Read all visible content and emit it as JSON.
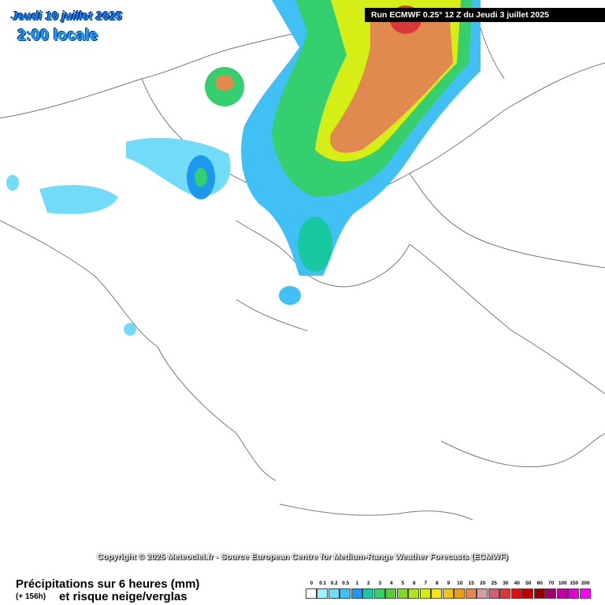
{
  "header": {
    "date": "Jeudi 10 juillet 2025",
    "time": "2:00 locale",
    "run": "Run ECMWF 0.25° 12 Z du Jeudi 3 juillet 2025"
  },
  "copyright": "Copyright © 2025 Meteociel.fr - Source European Centre for Medium-Range Weather Forecasts (ECMWF)",
  "footer": {
    "title": "Précipitations sur 6 heures (mm)",
    "lead": "(+ 156h)",
    "subtitle": "et risque neige/verglas"
  },
  "legend": {
    "labels": [
      "0",
      "0.1",
      "0.2",
      "0.5",
      "1",
      "2",
      "3",
      "4",
      "5",
      "6",
      "7",
      "8",
      "9",
      "10",
      "15",
      "20",
      "25",
      "30",
      "40",
      "50",
      "60",
      "70",
      "100",
      "150",
      "200"
    ],
    "colors": [
      "#ffffff",
      "#a0f0fe",
      "#72dcf8",
      "#40c0f4",
      "#1c98ec",
      "#18c8a0",
      "#36cf70",
      "#5ac83a",
      "#82d82a",
      "#aee41e",
      "#d4ee16",
      "#f0e61a",
      "#f0c414",
      "#e8a016",
      "#e08a50",
      "#d2a0a0",
      "#d06070",
      "#d83838",
      "#e01010",
      "#c00000",
      "#900000",
      "#a0006a",
      "#c000a0",
      "#e000d0",
      "#ff00ff"
    ]
  }
}
